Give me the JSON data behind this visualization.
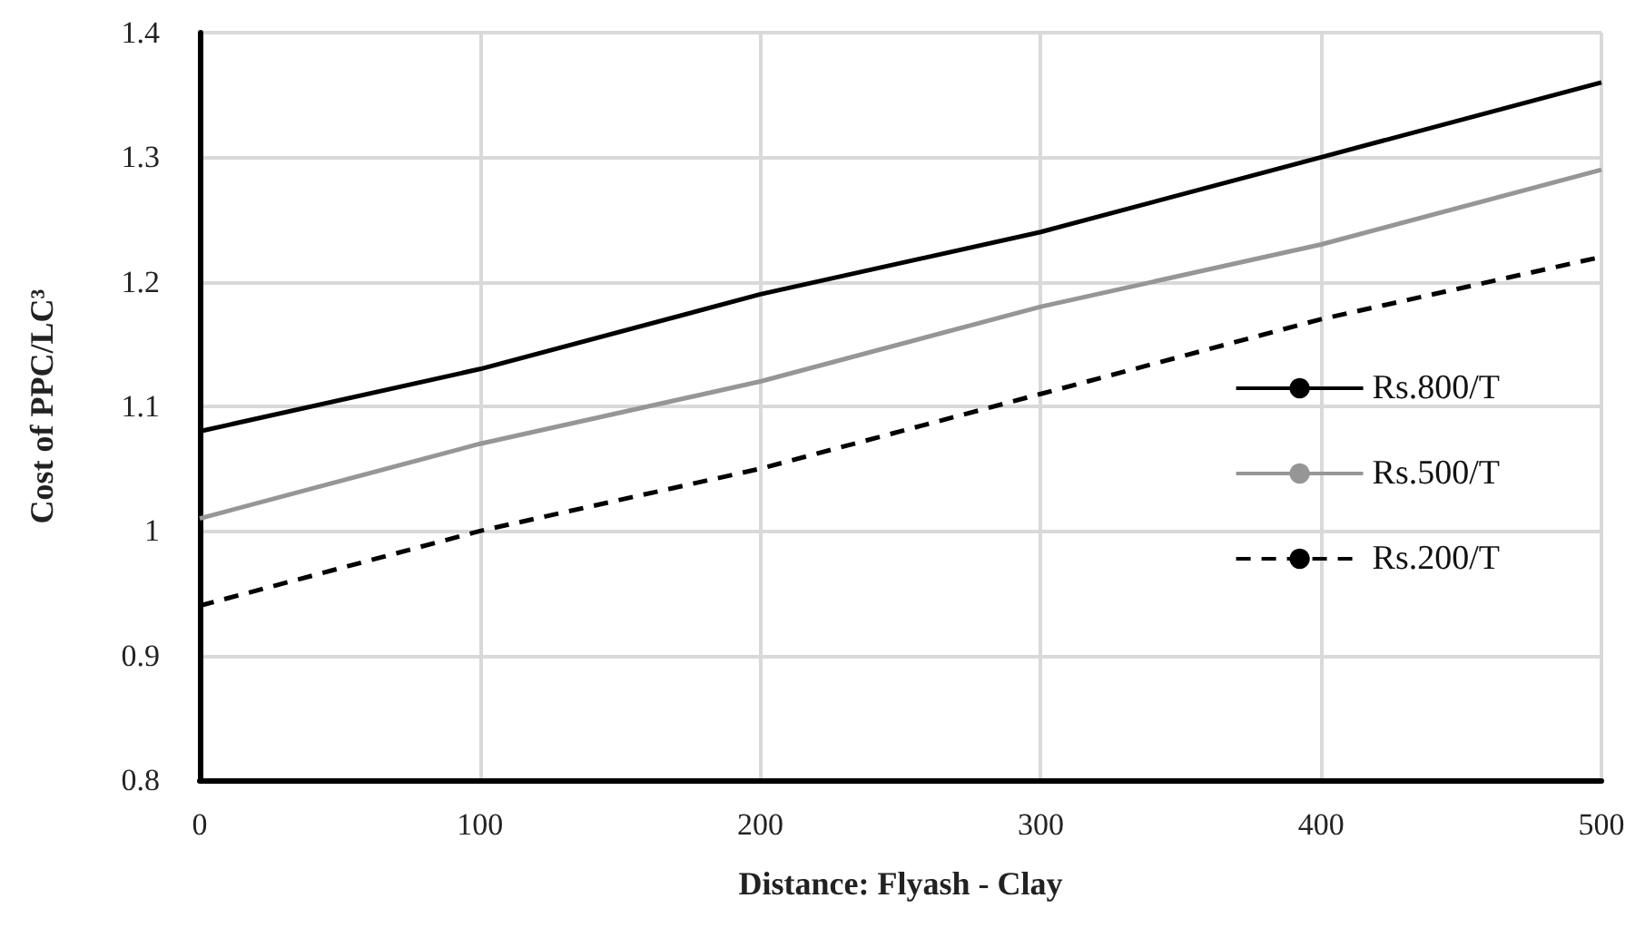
{
  "chart_data": {
    "type": "line",
    "xlabel": "Distance: Flyash - Clay",
    "ylabel": "Cost of PPC/LC³",
    "x": [
      0,
      100,
      200,
      300,
      400,
      500
    ],
    "series": [
      {
        "name": "Rs.800/T",
        "color": "#000000",
        "line_style": "solid",
        "values": [
          1.08,
          1.13,
          1.19,
          1.24,
          1.3,
          1.36
        ]
      },
      {
        "name": "Rs.500/T",
        "color": "#969696",
        "line_style": "solid",
        "values": [
          1.01,
          1.07,
          1.12,
          1.18,
          1.23,
          1.29
        ]
      },
      {
        "name": "Rs.200/T",
        "color": "#000000",
        "line_style": "dashed",
        "values": [
          0.94,
          1.0,
          1.05,
          1.11,
          1.17,
          1.22
        ]
      }
    ],
    "xlim": [
      0,
      500
    ],
    "xticks": [
      0,
      100,
      200,
      300,
      400,
      500
    ],
    "ylim": [
      0.8,
      1.4
    ],
    "yticks": [
      0.8,
      0.9,
      1,
      1.1,
      1.2,
      1.3,
      1.4
    ],
    "grid": true,
    "legend": "right",
    "marker": "none"
  }
}
